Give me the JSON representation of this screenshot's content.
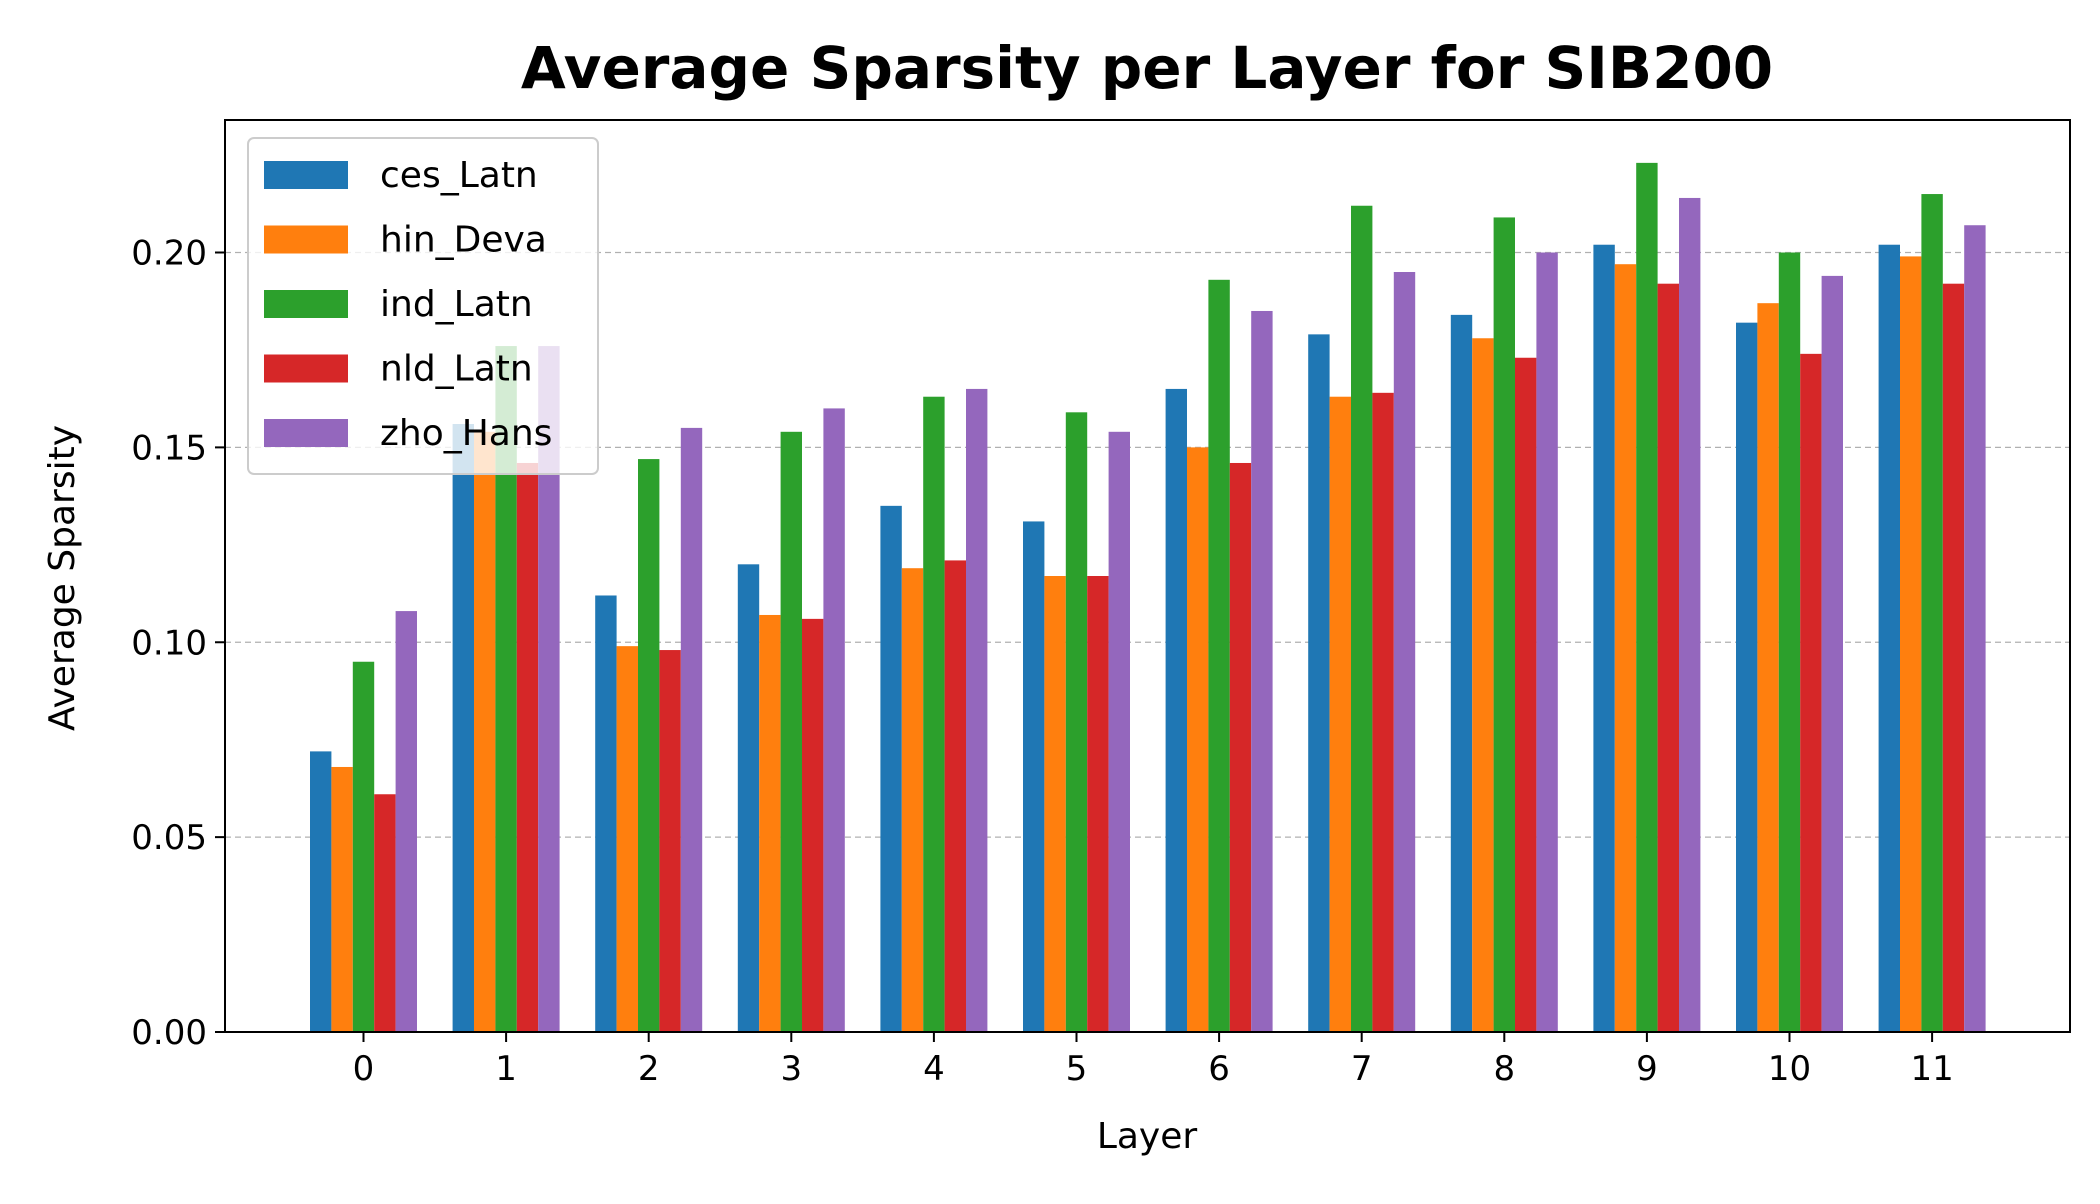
{
  "chart_data": {
    "type": "bar",
    "title": "Average Sparsity per Layer for SIB200",
    "xlabel": "Layer",
    "ylabel": "Average Sparsity",
    "categories": [
      "0",
      "1",
      "2",
      "3",
      "4",
      "5",
      "6",
      "7",
      "8",
      "9",
      "10",
      "11"
    ],
    "ylim": [
      0,
      0.234
    ],
    "yticks": [
      "0.00",
      "0.05",
      "0.10",
      "0.15",
      "0.20"
    ],
    "grid": "y-dashed",
    "legend_position": "top-left",
    "series": [
      {
        "name": "ces_Latn",
        "color": "#1f77b4",
        "values": [
          0.072,
          0.156,
          0.112,
          0.12,
          0.135,
          0.131,
          0.165,
          0.179,
          0.184,
          0.202,
          0.182,
          0.202
        ]
      },
      {
        "name": "hin_Deva",
        "color": "#ff7f0e",
        "values": [
          0.068,
          0.154,
          0.099,
          0.107,
          0.119,
          0.117,
          0.15,
          0.163,
          0.178,
          0.197,
          0.187,
          0.199
        ]
      },
      {
        "name": "ind_Latn",
        "color": "#2ca02c",
        "values": [
          0.095,
          0.176,
          0.147,
          0.154,
          0.163,
          0.159,
          0.193,
          0.212,
          0.209,
          0.223,
          0.2,
          0.215
        ]
      },
      {
        "name": "nld_Latn",
        "color": "#d62728",
        "values": [
          0.061,
          0.146,
          0.098,
          0.106,
          0.121,
          0.117,
          0.146,
          0.164,
          0.173,
          0.192,
          0.174,
          0.192
        ]
      },
      {
        "name": "zho_Hans",
        "color": "#9467bd",
        "values": [
          0.108,
          0.176,
          0.155,
          0.16,
          0.165,
          0.154,
          0.185,
          0.195,
          0.2,
          0.214,
          0.194,
          0.207
        ]
      }
    ]
  }
}
